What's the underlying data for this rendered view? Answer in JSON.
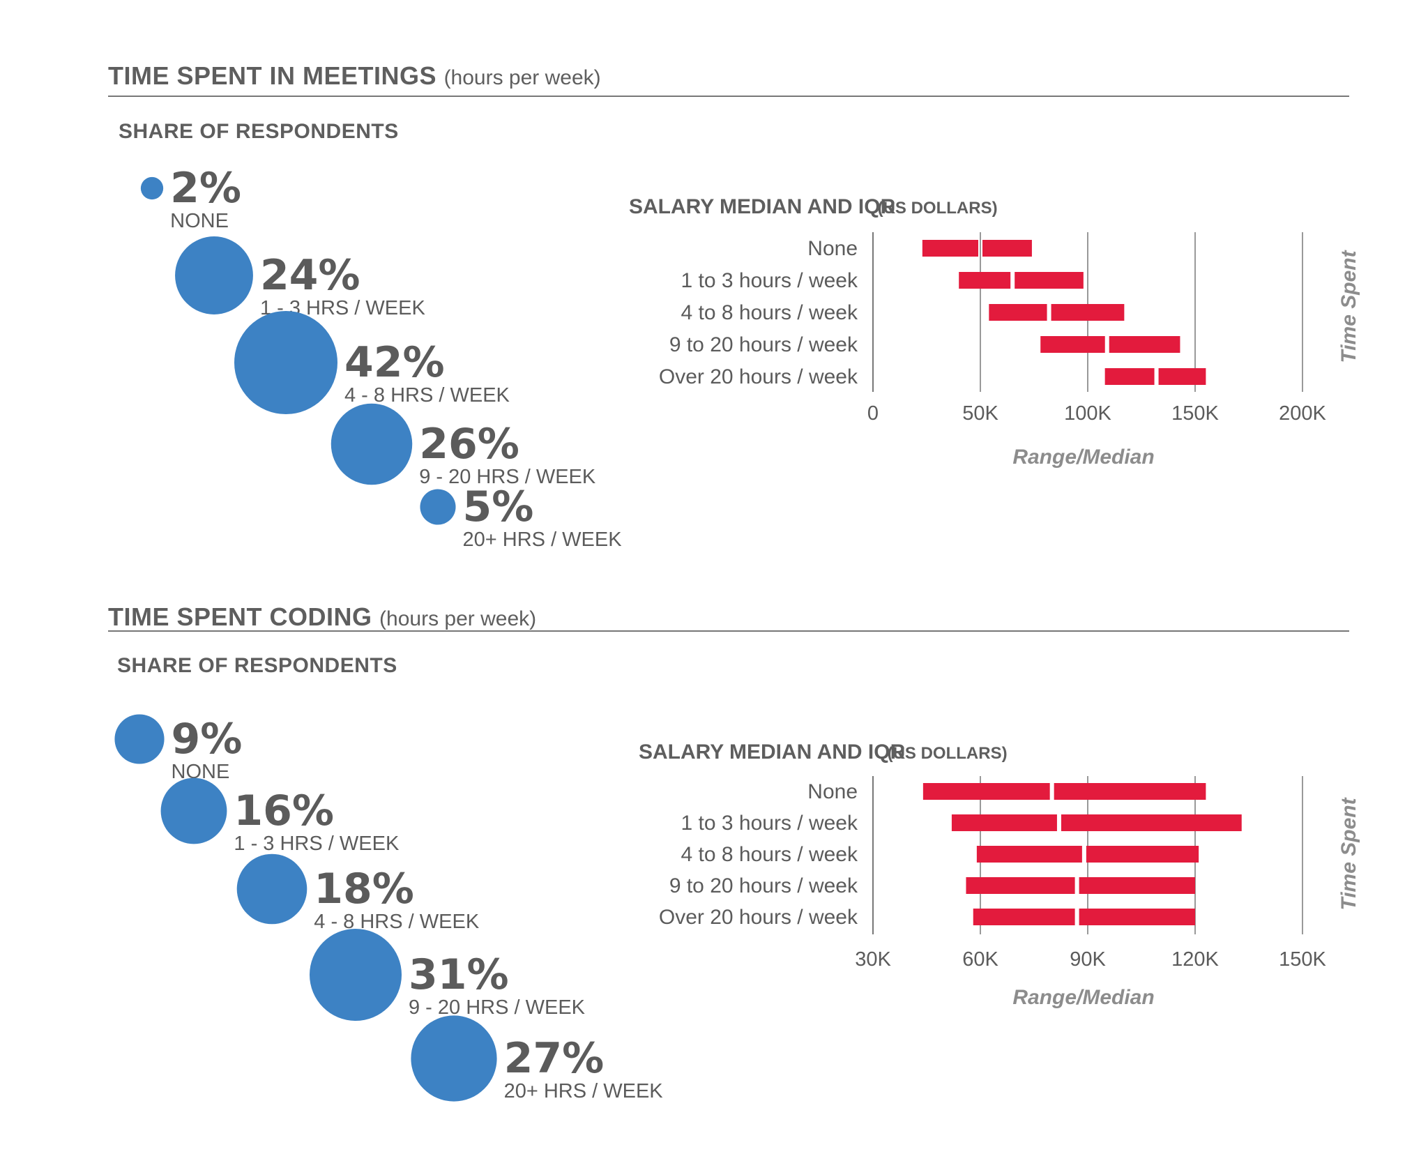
{
  "colors": {
    "bubble": "#3d82c4",
    "bar": "#e31b3d",
    "text": "#5b5b5b",
    "grid": "#999999"
  },
  "sections": [
    {
      "title": "TIME SPENT IN MEETINGS",
      "subtitle": "(hours per week)",
      "share_title": "SHARE OF RESPONDENTS"
    },
    {
      "title": "TIME SPENT CODING",
      "subtitle": "(hours per week)",
      "share_title": "SHARE OF RESPONDENTS"
    }
  ],
  "chart_data": [
    {
      "type": "bubble",
      "title": "SHARE OF RESPONDENTS",
      "categories": [
        "NONE",
        "1 - 3 HRS / WEEK",
        "4 - 8 HRS / WEEK",
        "9 - 20 HRS / WEEK",
        "20+ HRS / WEEK"
      ],
      "labels": [
        "2%",
        "24%",
        "42%",
        "26%",
        "5%"
      ],
      "values": [
        2,
        24,
        42,
        26,
        5
      ]
    },
    {
      "type": "range",
      "title": "SALARY MEDIAN AND IQR",
      "title_units": "(US DOLLARS)",
      "xlabel": "Range/Median",
      "ylabel": "Time Spent",
      "xlim": [
        0,
        200000
      ],
      "ticks": [
        0,
        50000,
        100000,
        150000,
        200000
      ],
      "tick_labels": [
        "0",
        "50K",
        "100K",
        "150K",
        "200K"
      ],
      "categories": [
        "None",
        "1 to 3 hours / week",
        "4 to 8 hours / week",
        "9 to 20 hours / week",
        "Over 20 hours / week"
      ],
      "q1": [
        23000,
        40000,
        54000,
        78000,
        108000
      ],
      "median": [
        50000,
        65000,
        82000,
        109000,
        132000
      ],
      "q3": [
        74000,
        98000,
        117000,
        143000,
        155000
      ]
    },
    {
      "type": "bubble",
      "title": "SHARE OF RESPONDENTS",
      "categories": [
        "NONE",
        "1 - 3 HRS / WEEK",
        "4 - 8 HRS / WEEK",
        "9 - 20 HRS / WEEK",
        "20+ HRS / WEEK"
      ],
      "labels": [
        "9%",
        "16%",
        "18%",
        "31%",
        "27%"
      ],
      "values": [
        9,
        16,
        18,
        31,
        27
      ]
    },
    {
      "type": "range",
      "title": "SALARY MEDIAN AND IQR",
      "title_units": "(US DOLLARS)",
      "xlabel": "Range/Median",
      "ylabel": "Time Spent",
      "xlim": [
        30000,
        150000
      ],
      "ticks": [
        30000,
        60000,
        90000,
        120000,
        150000
      ],
      "tick_labels": [
        "30K",
        "60K",
        "90K",
        "120K",
        "150K"
      ],
      "categories": [
        "None",
        "1 to 3 hours / week",
        "4 to 8 hours / week",
        "9 to 20 hours / week",
        "Over 20 hours / week"
      ],
      "q1": [
        44000,
        52000,
        59000,
        56000,
        58000
      ],
      "median": [
        80000,
        82000,
        89000,
        87000,
        87000
      ],
      "q3": [
        123000,
        133000,
        121000,
        120000,
        120000
      ]
    }
  ]
}
